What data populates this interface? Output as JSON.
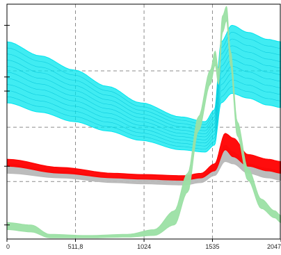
{
  "chart_data": {
    "type": "line",
    "title": "",
    "xlabel": "",
    "ylabel": "",
    "xlim": [
      0,
      2047
    ],
    "ylim": [
      0,
      100
    ],
    "grid": true,
    "x_ticks": [
      {
        "value": 0,
        "label": "0"
      },
      {
        "value": 511.8,
        "label": "511,8"
      },
      {
        "value": 1024,
        "label": "1024"
      },
      {
        "value": 1535,
        "label": "1535"
      },
      {
        "value": 2047,
        "label": "2047"
      }
    ],
    "y_grid_values": [
      0,
      24.5,
      47.6,
      71.6,
      100
    ],
    "y_tick_marks": [
      6,
      31,
      63,
      69,
      91
    ],
    "colors": {
      "cyan_band": "#00e5ee",
      "red_band": "#ff0000",
      "gray_band": "#b8b8b8",
      "green_band": "#9be0a4",
      "grid": "#8c8c8c",
      "frame": "#000000"
    },
    "series": [
      {
        "color_key": "cyan_band",
        "upper": [
          [
            0,
            84
          ],
          [
            250,
            78
          ],
          [
            500,
            72
          ],
          [
            750,
            65
          ],
          [
            1000,
            58
          ],
          [
            1300,
            52
          ],
          [
            1480,
            50
          ],
          [
            1550,
            55
          ],
          [
            1600,
            84
          ],
          [
            1680,
            91
          ],
          [
            1800,
            88
          ],
          [
            1950,
            85
          ],
          [
            2047,
            84
          ]
        ],
        "lower": [
          [
            0,
            58
          ],
          [
            250,
            54
          ],
          [
            500,
            50
          ],
          [
            750,
            46
          ],
          [
            1000,
            42
          ],
          [
            1300,
            38
          ],
          [
            1480,
            37
          ],
          [
            1550,
            40
          ],
          [
            1600,
            58
          ],
          [
            1680,
            62
          ],
          [
            1800,
            60
          ],
          [
            1950,
            57
          ],
          [
            2047,
            56
          ]
        ]
      },
      {
        "color_key": "gray_band",
        "upper": [
          [
            0,
            32
          ],
          [
            400,
            29
          ],
          [
            800,
            26
          ],
          [
            1000,
            25.5
          ],
          [
            1320,
            25
          ],
          [
            1450,
            26
          ],
          [
            1550,
            31
          ],
          [
            1630,
            40
          ],
          [
            1690,
            37
          ],
          [
            1800,
            32
          ],
          [
            1950,
            30
          ],
          [
            2047,
            29
          ]
        ],
        "lower": [
          [
            0,
            28
          ],
          [
            400,
            26
          ],
          [
            800,
            24
          ],
          [
            1000,
            23.5
          ],
          [
            1320,
            23
          ],
          [
            1450,
            24
          ],
          [
            1550,
            27
          ],
          [
            1630,
            33
          ],
          [
            1690,
            32
          ],
          [
            1800,
            28
          ],
          [
            1950,
            26
          ],
          [
            2047,
            25
          ]
        ]
      },
      {
        "color_key": "red_band",
        "upper": [
          [
            0,
            34
          ],
          [
            400,
            30.5
          ],
          [
            800,
            28
          ],
          [
            1000,
            27.5
          ],
          [
            1320,
            27
          ],
          [
            1450,
            28
          ],
          [
            1550,
            32
          ],
          [
            1630,
            45
          ],
          [
            1690,
            43
          ],
          [
            1800,
            36
          ],
          [
            1950,
            34
          ],
          [
            2047,
            33
          ]
        ],
        "lower": [
          [
            0,
            31
          ],
          [
            400,
            28
          ],
          [
            800,
            26
          ],
          [
            1000,
            25.5
          ],
          [
            1320,
            25
          ],
          [
            1450,
            26
          ],
          [
            1550,
            29
          ],
          [
            1630,
            38
          ],
          [
            1690,
            35
          ],
          [
            1800,
            31
          ],
          [
            1950,
            29
          ],
          [
            2047,
            28
          ]
        ]
      },
      {
        "color_key": "green_band",
        "upper": [
          [
            0,
            7
          ],
          [
            180,
            6
          ],
          [
            320,
            2
          ],
          [
            600,
            1.5
          ],
          [
            900,
            2
          ],
          [
            1100,
            4
          ],
          [
            1250,
            12
          ],
          [
            1350,
            28
          ],
          [
            1430,
            52
          ],
          [
            1520,
            72
          ],
          [
            1555,
            80
          ],
          [
            1580,
            72
          ],
          [
            1610,
            95
          ],
          [
            1640,
            99
          ],
          [
            1670,
            80
          ],
          [
            1720,
            50
          ],
          [
            1800,
            30
          ],
          [
            1900,
            17
          ],
          [
            2000,
            12
          ],
          [
            2047,
            10
          ]
        ],
        "lower": [
          [
            0,
            4
          ],
          [
            180,
            3
          ],
          [
            320,
            0.5
          ],
          [
            600,
            0.5
          ],
          [
            900,
            0.8
          ],
          [
            1100,
            1.5
          ],
          [
            1250,
            6
          ],
          [
            1350,
            20
          ],
          [
            1430,
            46
          ],
          [
            1520,
            66
          ],
          [
            1555,
            74
          ],
          [
            1580,
            66
          ],
          [
            1610,
            88
          ],
          [
            1640,
            93
          ],
          [
            1670,
            74
          ],
          [
            1720,
            44
          ],
          [
            1800,
            25
          ],
          [
            1900,
            13
          ],
          [
            2000,
            9
          ],
          [
            2047,
            7
          ]
        ]
      }
    ]
  }
}
